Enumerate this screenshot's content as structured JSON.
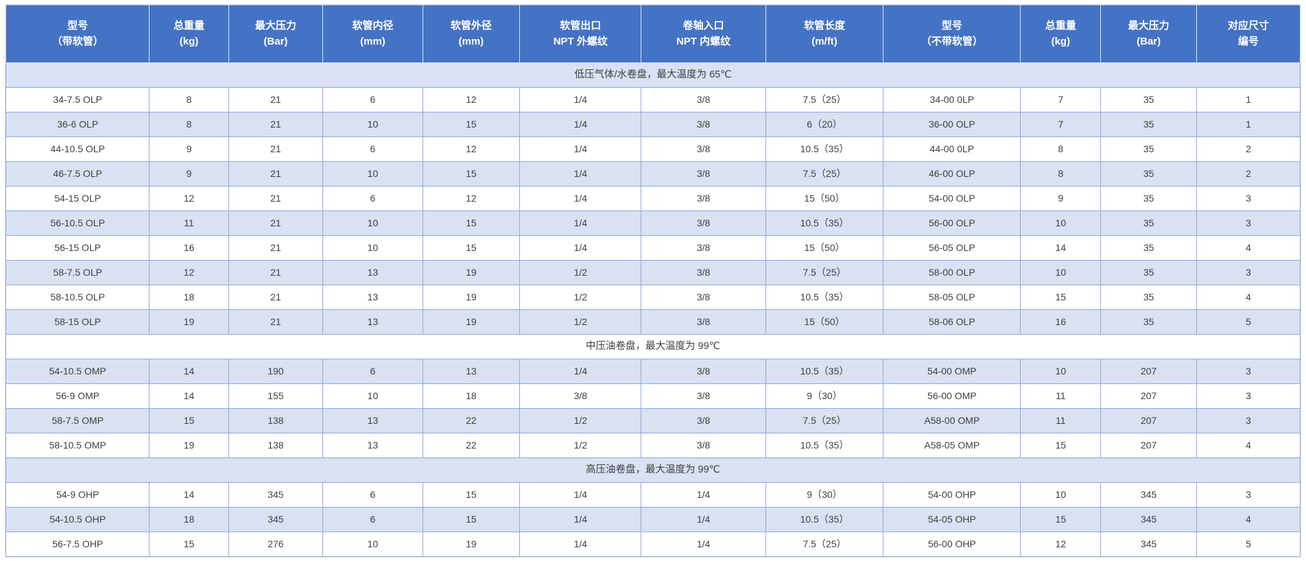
{
  "colors": {
    "header_bg": "#4472c4",
    "header_text": "#ffffff",
    "stripe_bg": "#d9e1f2",
    "grid_border": "#8eaadc",
    "body_text": "#3f3f3f"
  },
  "table": {
    "header": {
      "columns": [
        {
          "line1": "型号",
          "line2": "（带软管）"
        },
        {
          "line1": "总重量",
          "line2": "(kg)"
        },
        {
          "line1": "最大压力",
          "line2": "(Bar)"
        },
        {
          "line1": "软管内径",
          "line2": "(mm)"
        },
        {
          "line1": "软管外径",
          "line2": "(mm)"
        },
        {
          "line1": "软管出口",
          "line2": "NPT 外螺纹"
        },
        {
          "line1": "卷轴入口",
          "line2": "NPT 内螺纹"
        },
        {
          "line1": "软管长度",
          "line2": "(m/ft)"
        },
        {
          "line1": "型号",
          "line2": "（不带软管）"
        },
        {
          "line1": "总重量",
          "line2": "(kg)"
        },
        {
          "line1": "最大压力",
          "line2": "(Bar)"
        },
        {
          "line1": "对应尺寸",
          "line2": "编号"
        }
      ]
    },
    "sections": [
      {
        "title": "低压气体/水卷盘，最大温度为 65℃",
        "rows": [
          [
            "34-7.5 OLP",
            "8",
            "21",
            "6",
            "12",
            "1/4",
            "3/8",
            "7.5（25）",
            "34-00 0LP",
            "7",
            "35",
            "1"
          ],
          [
            "36-6 OLP",
            "8",
            "21",
            "10",
            "15",
            "1/4",
            "3/8",
            "6（20）",
            "36-00 OLP",
            "7",
            "35",
            "1"
          ],
          [
            "44-10.5 OLP",
            "9",
            "21",
            "6",
            "12",
            "1/4",
            "3/8",
            "10.5（35）",
            "44-00 0LP",
            "8",
            "35",
            "2"
          ],
          [
            "46-7.5 OLP",
            "9",
            "21",
            "10",
            "15",
            "1/4",
            "3/8",
            "7.5（25）",
            "46-00 OLP",
            "8",
            "35",
            "2"
          ],
          [
            "54-15 OLP",
            "12",
            "21",
            "6",
            "12",
            "1/4",
            "3/8",
            "15（50）",
            "54-00 OLP",
            "9",
            "35",
            "3"
          ],
          [
            "56-10.5 OLP",
            "11",
            "21",
            "10",
            "15",
            "1/4",
            "3/8",
            "10.5（35）",
            "56-00 OLP",
            "10",
            "35",
            "3"
          ],
          [
            "56-15 OLP",
            "16",
            "21",
            "10",
            "15",
            "1/4",
            "3/8",
            "15（50）",
            "56-05 OLP",
            "14",
            "35",
            "4"
          ],
          [
            "58-7.5 OLP",
            "12",
            "21",
            "13",
            "19",
            "1/2",
            "3/8",
            "7.5（25）",
            "58-00 OLP",
            "10",
            "35",
            "3"
          ],
          [
            "58-10.5 OLP",
            "18",
            "21",
            "13",
            "19",
            "1/2",
            "3/8",
            "10.5（35）",
            "58-05 OLP",
            "15",
            "35",
            "4"
          ],
          [
            "58-15 OLP",
            "19",
            "21",
            "13",
            "19",
            "1/2",
            "3/8",
            "15（50）",
            "58-06 OLP",
            "16",
            "35",
            "5"
          ]
        ]
      },
      {
        "title": "中压油卷盘，最大温度为 99℃",
        "rows": [
          [
            "54-10.5 OMP",
            "14",
            "190",
            "6",
            "13",
            "1/4",
            "3/8",
            "10.5（35）",
            "54-00 OMP",
            "10",
            "207",
            "3"
          ],
          [
            "56-9 OMP",
            "14",
            "155",
            "10",
            "18",
            "3/8",
            "3/8",
            "9（30）",
            "56-00 OMP",
            "11",
            "207",
            "3"
          ],
          [
            "58-7.5 OMP",
            "15",
            "138",
            "13",
            "22",
            "1/2",
            "3/8",
            "7.5（25）",
            "A58-00 OMP",
            "11",
            "207",
            "3"
          ],
          [
            "58-10.5 OMP",
            "19",
            "138",
            "13",
            "22",
            "1/2",
            "3/8",
            "10.5（35）",
            "A58-05 OMP",
            "15",
            "207",
            "4"
          ]
        ]
      },
      {
        "title": "高压油卷盘，最大温度为 99℃",
        "rows": [
          [
            "54-9 OHP",
            "14",
            "345",
            "6",
            "15",
            "1/4",
            "1/4",
            "9（30）",
            "54-00 OHP",
            "10",
            "345",
            "3"
          ],
          [
            "54-10.5 OHP",
            "18",
            "345",
            "6",
            "15",
            "1/4",
            "1/4",
            "10.5（35）",
            "54-05 OHP",
            "15",
            "345",
            "4"
          ],
          [
            "56-7.5 OHP",
            "15",
            "276",
            "10",
            "19",
            "1/4",
            "1/4",
            "7.5（25）",
            "56-00 OHP",
            "12",
            "345",
            "5"
          ]
        ]
      }
    ]
  }
}
